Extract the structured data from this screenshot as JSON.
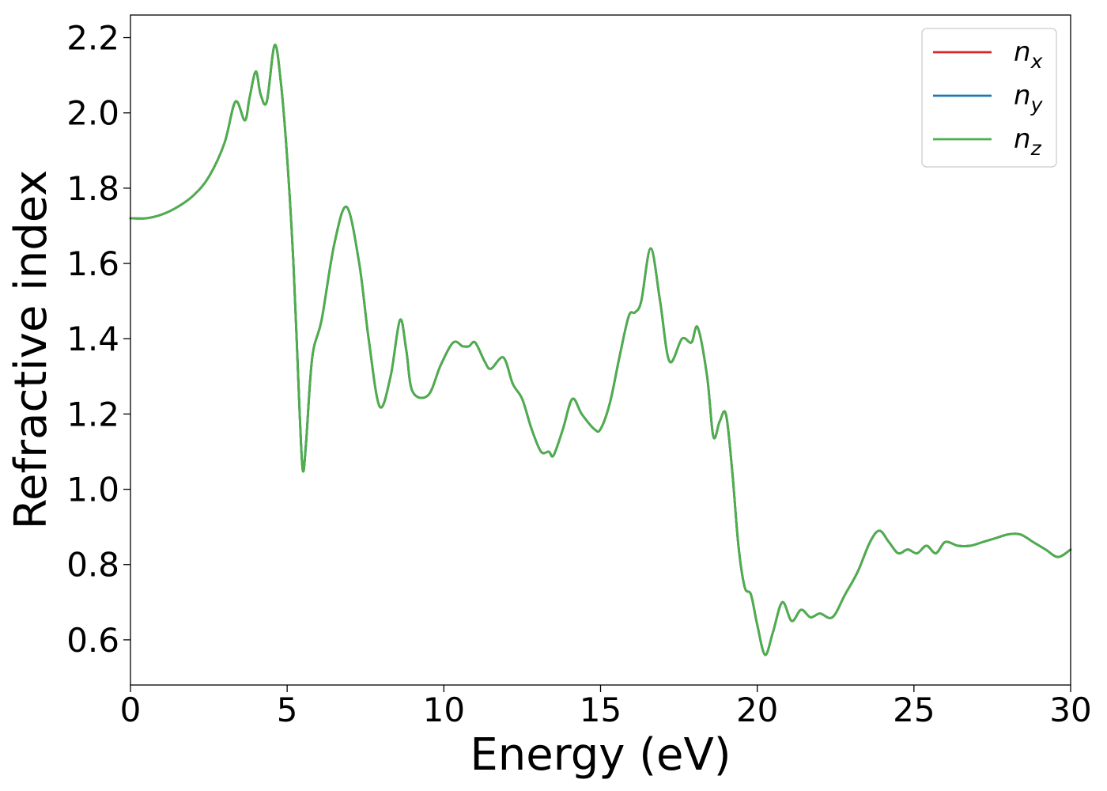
{
  "chart_data": {
    "type": "line",
    "title": "",
    "xlabel": "Energy (eV)",
    "ylabel": "Refractive index",
    "xlim": [
      0,
      30
    ],
    "ylim": [
      0.48,
      2.26
    ],
    "xticks": [
      0,
      5,
      10,
      15,
      20,
      25,
      30
    ],
    "xtick_labels": [
      "0",
      "5",
      "10",
      "15",
      "20",
      "25",
      "30"
    ],
    "yticks": [
      0.6,
      0.8,
      1.0,
      1.2,
      1.4,
      1.6,
      1.8,
      2.0,
      2.2
    ],
    "ytick_labels": [
      "0.6",
      "0.8",
      "1.0",
      "1.2",
      "1.4",
      "1.6",
      "1.8",
      "2.0",
      "2.2"
    ],
    "grid": false,
    "legend_position": "top-right",
    "x": [
      0,
      0.5,
      1.0,
      1.5,
      2.0,
      2.5,
      3.0,
      3.35,
      3.65,
      3.8,
      4.0,
      4.15,
      4.35,
      4.6,
      4.8,
      5.0,
      5.2,
      5.4,
      5.5,
      5.6,
      5.8,
      6.1,
      6.5,
      6.9,
      7.3,
      7.6,
      7.95,
      8.3,
      8.6,
      8.8,
      9.0,
      9.5,
      9.9,
      10.3,
      10.6,
      10.8,
      11.0,
      11.3,
      11.5,
      11.9,
      12.2,
      12.5,
      12.8,
      13.1,
      13.35,
      13.5,
      13.8,
      14.1,
      14.4,
      14.8,
      15.0,
      15.3,
      15.6,
      15.9,
      16.1,
      16.3,
      16.6,
      16.9,
      17.2,
      17.6,
      17.9,
      18.1,
      18.4,
      18.6,
      18.8,
      19.0,
      19.2,
      19.4,
      19.6,
      19.8,
      20.0,
      20.25,
      20.5,
      20.8,
      21.1,
      21.4,
      21.7,
      22.0,
      22.4,
      22.8,
      23.2,
      23.6,
      23.9,
      24.2,
      24.5,
      24.8,
      25.1,
      25.4,
      25.7,
      26.0,
      26.4,
      26.8,
      27.2,
      27.6,
      28.0,
      28.4,
      28.8,
      29.2,
      29.6,
      30.0
    ],
    "series": [
      {
        "name": "n_x",
        "color": "#d62728",
        "values": [
          1.72,
          1.72,
          1.73,
          1.75,
          1.78,
          1.83,
          1.92,
          2.03,
          1.98,
          2.04,
          2.11,
          2.05,
          2.03,
          2.18,
          2.08,
          1.88,
          1.6,
          1.2,
          1.05,
          1.12,
          1.35,
          1.45,
          1.65,
          1.75,
          1.6,
          1.4,
          1.22,
          1.3,
          1.45,
          1.37,
          1.26,
          1.25,
          1.33,
          1.39,
          1.38,
          1.38,
          1.39,
          1.34,
          1.32,
          1.35,
          1.28,
          1.24,
          1.16,
          1.1,
          1.1,
          1.09,
          1.16,
          1.24,
          1.2,
          1.16,
          1.16,
          1.23,
          1.35,
          1.46,
          1.47,
          1.5,
          1.64,
          1.5,
          1.34,
          1.4,
          1.39,
          1.43,
          1.3,
          1.14,
          1.18,
          1.2,
          1.05,
          0.85,
          0.74,
          0.72,
          0.64,
          0.56,
          0.62,
          0.7,
          0.65,
          0.68,
          0.66,
          0.67,
          0.66,
          0.72,
          0.78,
          0.86,
          0.89,
          0.86,
          0.83,
          0.84,
          0.83,
          0.85,
          0.83,
          0.86,
          0.85,
          0.85,
          0.86,
          0.87,
          0.88,
          0.88,
          0.86,
          0.84,
          0.82,
          0.84
        ]
      },
      {
        "name": "n_y",
        "color": "#1f77b4",
        "values": [
          1.72,
          1.72,
          1.73,
          1.75,
          1.78,
          1.83,
          1.92,
          2.03,
          1.98,
          2.04,
          2.11,
          2.05,
          2.03,
          2.18,
          2.08,
          1.88,
          1.6,
          1.2,
          1.05,
          1.12,
          1.35,
          1.45,
          1.65,
          1.75,
          1.6,
          1.4,
          1.22,
          1.3,
          1.45,
          1.37,
          1.26,
          1.25,
          1.33,
          1.39,
          1.38,
          1.38,
          1.39,
          1.34,
          1.32,
          1.35,
          1.28,
          1.24,
          1.16,
          1.1,
          1.1,
          1.09,
          1.16,
          1.24,
          1.2,
          1.16,
          1.16,
          1.23,
          1.35,
          1.46,
          1.47,
          1.5,
          1.64,
          1.5,
          1.34,
          1.4,
          1.39,
          1.43,
          1.3,
          1.14,
          1.18,
          1.2,
          1.05,
          0.85,
          0.74,
          0.72,
          0.64,
          0.56,
          0.62,
          0.7,
          0.65,
          0.68,
          0.66,
          0.67,
          0.66,
          0.72,
          0.78,
          0.86,
          0.89,
          0.86,
          0.83,
          0.84,
          0.83,
          0.85,
          0.83,
          0.86,
          0.85,
          0.85,
          0.86,
          0.87,
          0.88,
          0.88,
          0.86,
          0.84,
          0.82,
          0.84
        ]
      },
      {
        "name": "n_z",
        "color": "#4daf4a",
        "values": [
          1.72,
          1.72,
          1.73,
          1.75,
          1.78,
          1.83,
          1.92,
          2.03,
          1.98,
          2.04,
          2.11,
          2.05,
          2.03,
          2.18,
          2.08,
          1.88,
          1.6,
          1.2,
          1.05,
          1.12,
          1.35,
          1.45,
          1.65,
          1.75,
          1.6,
          1.4,
          1.22,
          1.3,
          1.45,
          1.37,
          1.26,
          1.25,
          1.33,
          1.39,
          1.38,
          1.38,
          1.39,
          1.34,
          1.32,
          1.35,
          1.28,
          1.24,
          1.16,
          1.1,
          1.1,
          1.09,
          1.16,
          1.24,
          1.2,
          1.16,
          1.16,
          1.23,
          1.35,
          1.46,
          1.47,
          1.5,
          1.64,
          1.5,
          1.34,
          1.4,
          1.39,
          1.43,
          1.3,
          1.14,
          1.18,
          1.2,
          1.05,
          0.85,
          0.74,
          0.72,
          0.64,
          0.56,
          0.62,
          0.7,
          0.65,
          0.68,
          0.66,
          0.67,
          0.66,
          0.72,
          0.78,
          0.86,
          0.89,
          0.86,
          0.83,
          0.84,
          0.83,
          0.85,
          0.83,
          0.86,
          0.85,
          0.85,
          0.86,
          0.87,
          0.88,
          0.88,
          0.86,
          0.84,
          0.82,
          0.84
        ]
      }
    ],
    "legend": [
      {
        "base": "n",
        "sub": "x",
        "color": "#d62728"
      },
      {
        "base": "n",
        "sub": "y",
        "color": "#1f77b4"
      },
      {
        "base": "n",
        "sub": "z",
        "color": "#4daf4a"
      }
    ]
  }
}
